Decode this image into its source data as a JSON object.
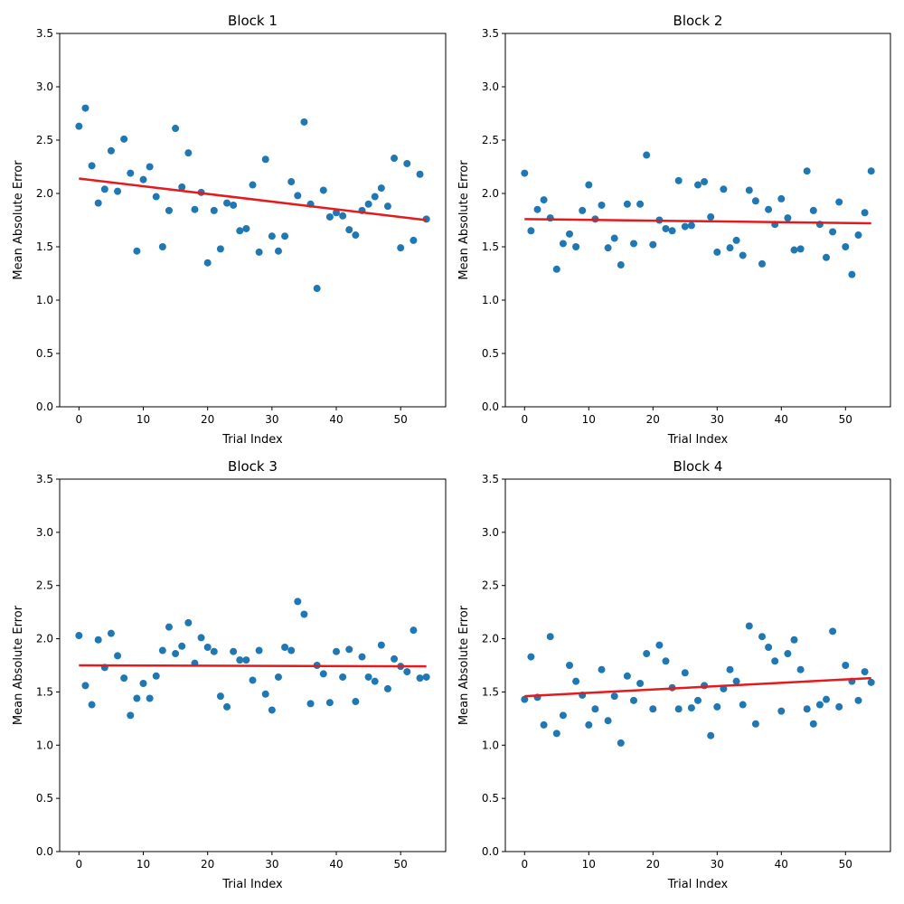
{
  "chart_data": [
    {
      "type": "scatter",
      "title": "Block 1",
      "xlabel": "Trial Index",
      "ylabel": "Mean Absolute Error",
      "xlim": [
        -3,
        57
      ],
      "ylim": [
        0,
        3.5
      ],
      "xticks": [
        0,
        10,
        20,
        30,
        40,
        50
      ],
      "yticks": [
        0.0,
        0.5,
        1.0,
        1.5,
        2.0,
        2.5,
        3.0,
        3.5
      ],
      "series": [
        {
          "x": [
            0,
            1,
            2,
            3,
            4,
            5,
            6,
            7,
            8,
            9,
            10,
            11,
            12,
            13,
            14,
            15,
            16,
            17,
            18,
            19,
            20,
            21,
            22,
            23,
            24,
            25,
            26,
            27,
            28,
            29,
            30,
            31,
            32,
            33,
            34,
            35,
            36,
            37,
            38,
            39,
            40,
            41,
            42,
            43,
            44,
            45,
            46,
            47,
            48,
            49,
            50,
            51,
            52,
            53,
            54
          ],
          "y": [
            2.63,
            2.8,
            2.26,
            1.91,
            2.04,
            2.4,
            2.02,
            2.51,
            2.19,
            1.46,
            2.13,
            2.25,
            1.97,
            1.5,
            1.84,
            2.61,
            2.06,
            2.38,
            1.85,
            2.01,
            1.35,
            1.84,
            1.48,
            1.91,
            1.89,
            1.65,
            1.67,
            2.08,
            1.45,
            2.32,
            1.6,
            1.46,
            1.6,
            2.11,
            1.98,
            2.67,
            1.9,
            1.11,
            2.03,
            1.78,
            1.82,
            1.79,
            1.66,
            1.61,
            1.84,
            1.9,
            1.97,
            2.05,
            1.88,
            2.33,
            1.49,
            2.28,
            1.56,
            2.18,
            1.76
          ]
        }
      ],
      "trend": {
        "x": [
          0,
          54
        ],
        "y": [
          2.14,
          1.75
        ]
      }
    },
    {
      "type": "scatter",
      "title": "Block 2",
      "xlabel": "Trial Index",
      "ylabel": "Mean Absolute Error",
      "xlim": [
        -3,
        57
      ],
      "ylim": [
        0,
        3.5
      ],
      "xticks": [
        0,
        10,
        20,
        30,
        40,
        50
      ],
      "yticks": [
        0.0,
        0.5,
        1.0,
        1.5,
        2.0,
        2.5,
        3.0,
        3.5
      ],
      "series": [
        {
          "x": [
            0,
            1,
            2,
            3,
            4,
            5,
            6,
            7,
            8,
            9,
            10,
            11,
            12,
            13,
            14,
            15,
            16,
            17,
            18,
            19,
            20,
            21,
            22,
            23,
            24,
            25,
            26,
            27,
            28,
            29,
            30,
            31,
            32,
            33,
            34,
            35,
            36,
            37,
            38,
            39,
            40,
            41,
            42,
            43,
            44,
            45,
            46,
            47,
            48,
            49,
            50,
            51,
            52,
            53,
            54
          ],
          "y": [
            2.19,
            1.65,
            1.85,
            1.94,
            1.77,
            1.29,
            1.53,
            1.62,
            1.5,
            1.84,
            2.08,
            1.76,
            1.89,
            1.49,
            1.58,
            1.33,
            1.9,
            1.53,
            1.9,
            2.36,
            1.52,
            1.75,
            1.67,
            1.65,
            2.12,
            1.69,
            1.7,
            2.08,
            2.11,
            1.78,
            1.45,
            2.04,
            1.49,
            1.56,
            1.42,
            2.03,
            1.93,
            1.34,
            1.85,
            1.71,
            1.95,
            1.77,
            1.47,
            1.48,
            2.21,
            1.84,
            1.71,
            1.4,
            1.64,
            1.92,
            1.5,
            1.24,
            1.61,
            1.82,
            2.21
          ]
        }
      ],
      "trend": {
        "x": [
          0,
          54
        ],
        "y": [
          1.76,
          1.72
        ]
      }
    },
    {
      "type": "scatter",
      "title": "Block 3",
      "xlabel": "Trial Index",
      "ylabel": "Mean Absolute Error",
      "xlim": [
        -3,
        57
      ],
      "ylim": [
        0,
        3.5
      ],
      "xticks": [
        0,
        10,
        20,
        30,
        40,
        50
      ],
      "yticks": [
        0.0,
        0.5,
        1.0,
        1.5,
        2.0,
        2.5,
        3.0,
        3.5
      ],
      "series": [
        {
          "x": [
            0,
            1,
            2,
            3,
            4,
            5,
            6,
            7,
            8,
            9,
            10,
            11,
            12,
            13,
            14,
            15,
            16,
            17,
            18,
            19,
            20,
            21,
            22,
            23,
            24,
            25,
            26,
            27,
            28,
            29,
            30,
            31,
            32,
            33,
            34,
            35,
            36,
            37,
            38,
            39,
            40,
            41,
            42,
            43,
            44,
            45,
            46,
            47,
            48,
            49,
            50,
            51,
            52,
            53,
            54
          ],
          "y": [
            2.03,
            1.56,
            1.38,
            1.99,
            1.73,
            2.05,
            1.84,
            1.63,
            1.28,
            1.44,
            1.58,
            1.44,
            1.65,
            1.89,
            2.11,
            1.86,
            1.93,
            2.15,
            1.77,
            2.01,
            1.92,
            1.88,
            1.46,
            1.36,
            1.88,
            1.8,
            1.8,
            1.61,
            1.89,
            1.48,
            1.33,
            1.64,
            1.92,
            1.89,
            2.35,
            2.23,
            1.39,
            1.75,
            1.67,
            1.4,
            1.88,
            1.64,
            1.9,
            1.41,
            1.83,
            1.64,
            1.6,
            1.94,
            1.53,
            1.81,
            1.74,
            1.69,
            2.08,
            1.63,
            1.64
          ]
        }
      ],
      "trend": {
        "x": [
          0,
          54
        ],
        "y": [
          1.75,
          1.74
        ]
      }
    },
    {
      "type": "scatter",
      "title": "Block 4",
      "xlabel": "Trial Index",
      "ylabel": "Mean Absolute Error",
      "xlim": [
        -3,
        57
      ],
      "ylim": [
        0,
        3.5
      ],
      "xticks": [
        0,
        10,
        20,
        30,
        40,
        50
      ],
      "yticks": [
        0.0,
        0.5,
        1.0,
        1.5,
        2.0,
        2.5,
        3.0,
        3.5
      ],
      "series": [
        {
          "x": [
            0,
            1,
            2,
            3,
            4,
            5,
            6,
            7,
            8,
            9,
            10,
            11,
            12,
            13,
            14,
            15,
            16,
            17,
            18,
            19,
            20,
            21,
            22,
            23,
            24,
            25,
            26,
            27,
            28,
            29,
            30,
            31,
            32,
            33,
            34,
            35,
            36,
            37,
            38,
            39,
            40,
            41,
            42,
            43,
            44,
            45,
            46,
            47,
            48,
            49,
            50,
            51,
            52,
            53,
            54
          ],
          "y": [
            1.43,
            1.83,
            1.45,
            1.19,
            2.02,
            1.11,
            1.28,
            1.75,
            1.6,
            1.47,
            1.19,
            1.34,
            1.71,
            1.23,
            1.46,
            1.02,
            1.65,
            1.42,
            1.58,
            1.86,
            1.34,
            1.94,
            1.79,
            1.54,
            1.34,
            1.68,
            1.35,
            1.42,
            1.56,
            1.09,
            1.36,
            1.53,
            1.71,
            1.6,
            1.38,
            2.12,
            1.2,
            2.02,
            1.92,
            1.79,
            1.32,
            1.86,
            1.99,
            1.71,
            1.34,
            1.2,
            1.38,
            1.43,
            2.07,
            1.36,
            1.75,
            1.6,
            1.42,
            1.69,
            1.59
          ]
        }
      ],
      "trend": {
        "x": [
          0,
          54
        ],
        "y": [
          1.46,
          1.63
        ]
      }
    }
  ],
  "colors": {
    "points": "#1f77b4",
    "trend": "#e41a1c",
    "axis": "#000000"
  }
}
